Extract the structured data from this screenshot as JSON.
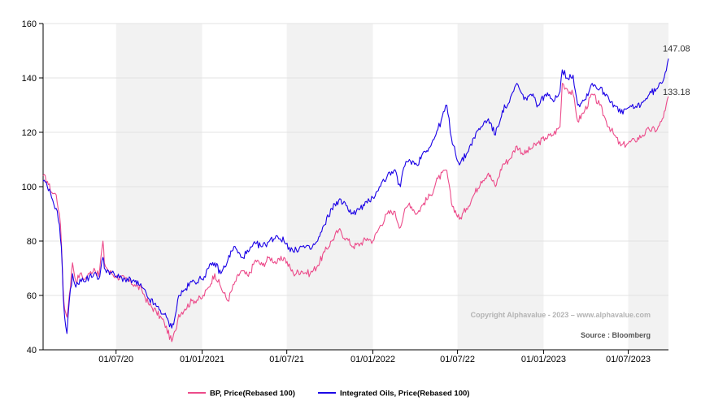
{
  "chart_data": {
    "type": "line",
    "title": "",
    "xlabel": "",
    "ylabel": "",
    "ylim": [
      40,
      160
    ],
    "y_ticks": [
      "40",
      "60",
      "80",
      "100",
      "120",
      "140",
      "160"
    ],
    "x_tick_labels": [
      "01/07/20",
      "01/01/2021",
      "01/07/21",
      "01/01/2022",
      "01/07/22",
      "01/01/2023",
      "01/07/2023"
    ],
    "x_tick_dates": [
      "2020-07-01",
      "2021-01-01",
      "2021-07-01",
      "2022-01-01",
      "2022-07-01",
      "2023-01-01",
      "2023-07-01"
    ],
    "xlim": [
      "2020-01-27",
      "2023-09-25"
    ],
    "grid": true,
    "shaded_bands": [
      [
        "2020-07-01",
        "2021-01-01"
      ],
      [
        "2021-07-01",
        "2022-01-01"
      ],
      [
        "2022-07-01",
        "2023-01-01"
      ],
      [
        "2023-07-01",
        "2023-09-25"
      ]
    ],
    "legend_position": "bottom",
    "copyright": "Copyright Alphavalue - 2023 – www.alphavalue.com",
    "source": "Source : Bloomberg",
    "series": [
      {
        "name": "BP, Price(Rebased 100)",
        "color": "#ec4b8a",
        "end_label": "133.18",
        "points": [
          [
            "2020-01-27",
            104
          ],
          [
            "2020-02-05",
            102
          ],
          [
            "2020-02-14",
            98
          ],
          [
            "2020-02-24",
            97
          ],
          [
            "2020-03-02",
            90
          ],
          [
            "2020-03-06",
            80
          ],
          [
            "2020-03-10",
            62
          ],
          [
            "2020-03-13",
            55
          ],
          [
            "2020-03-18",
            52
          ],
          [
            "2020-03-23",
            60
          ],
          [
            "2020-03-30",
            72
          ],
          [
            "2020-04-06",
            65
          ],
          [
            "2020-04-15",
            68
          ],
          [
            "2020-04-25",
            66
          ],
          [
            "2020-05-05",
            68
          ],
          [
            "2020-05-15",
            70
          ],
          [
            "2020-05-25",
            67
          ],
          [
            "2020-06-03",
            80
          ],
          [
            "2020-06-06",
            72
          ],
          [
            "2020-06-15",
            69
          ],
          [
            "2020-07-01",
            67
          ],
          [
            "2020-07-20",
            66
          ],
          [
            "2020-08-10",
            64
          ],
          [
            "2020-08-25",
            62
          ],
          [
            "2020-09-08",
            57
          ],
          [
            "2020-09-25",
            54
          ],
          [
            "2020-10-12",
            50
          ],
          [
            "2020-10-28",
            43
          ],
          [
            "2020-11-05",
            47
          ],
          [
            "2020-11-12",
            53
          ],
          [
            "2020-11-25",
            55
          ],
          [
            "2020-12-10",
            58
          ],
          [
            "2021-01-01",
            59
          ],
          [
            "2021-01-15",
            63
          ],
          [
            "2021-01-28",
            68
          ],
          [
            "2021-02-10",
            63
          ],
          [
            "2021-02-25",
            58
          ],
          [
            "2021-03-10",
            64
          ],
          [
            "2021-03-25",
            69
          ],
          [
            "2021-04-10",
            67
          ],
          [
            "2021-04-25",
            73
          ],
          [
            "2021-05-10",
            71
          ],
          [
            "2021-05-25",
            74
          ],
          [
            "2021-06-10",
            72
          ],
          [
            "2021-06-25",
            74
          ],
          [
            "2021-07-15",
            68
          ],
          [
            "2021-08-01",
            69
          ],
          [
            "2021-08-20",
            68
          ],
          [
            "2021-09-05",
            71
          ],
          [
            "2021-09-20",
            76
          ],
          [
            "2021-10-05",
            80
          ],
          [
            "2021-10-20",
            84
          ],
          [
            "2021-11-05",
            81
          ],
          [
            "2021-11-20",
            78
          ],
          [
            "2021-12-05",
            79
          ],
          [
            "2021-12-20",
            81
          ],
          [
            "2022-01-01",
            80
          ],
          [
            "2022-01-15",
            85
          ],
          [
            "2022-02-01",
            90
          ],
          [
            "2022-02-15",
            91
          ],
          [
            "2022-03-01",
            85
          ],
          [
            "2022-03-08",
            90
          ],
          [
            "2022-03-20",
            94
          ],
          [
            "2022-04-05",
            90
          ],
          [
            "2022-04-20",
            94
          ],
          [
            "2022-05-05",
            97
          ],
          [
            "2022-05-20",
            103
          ],
          [
            "2022-06-08",
            106
          ],
          [
            "2022-06-18",
            94
          ],
          [
            "2022-07-05",
            88
          ],
          [
            "2022-07-20",
            92
          ],
          [
            "2022-08-05",
            97
          ],
          [
            "2022-08-20",
            102
          ],
          [
            "2022-09-05",
            105
          ],
          [
            "2022-09-20",
            100
          ],
          [
            "2022-10-05",
            108
          ],
          [
            "2022-10-20",
            110
          ],
          [
            "2022-11-05",
            115
          ],
          [
            "2022-11-20",
            112
          ],
          [
            "2022-12-05",
            114
          ],
          [
            "2022-12-20",
            116
          ],
          [
            "2023-01-05",
            118
          ],
          [
            "2023-01-20",
            119
          ],
          [
            "2023-02-05",
            122
          ],
          [
            "2023-02-10",
            138
          ],
          [
            "2023-02-20",
            136
          ],
          [
            "2023-03-05",
            134
          ],
          [
            "2023-03-15",
            124
          ],
          [
            "2023-03-30",
            128
          ],
          [
            "2023-04-15",
            134
          ],
          [
            "2023-05-01",
            130
          ],
          [
            "2023-05-15",
            124
          ],
          [
            "2023-06-01",
            119
          ],
          [
            "2023-06-15",
            115
          ],
          [
            "2023-07-01",
            116
          ],
          [
            "2023-07-15",
            117
          ],
          [
            "2023-08-01",
            119
          ],
          [
            "2023-08-15",
            121
          ],
          [
            "2023-09-01",
            121
          ],
          [
            "2023-09-10",
            124
          ],
          [
            "2023-09-18",
            128
          ],
          [
            "2023-09-25",
            133.18
          ]
        ]
      },
      {
        "name": "Integrated Oils, Price(Rebased 100)",
        "color": "#1a00e6",
        "end_label": "147.08",
        "points": [
          [
            "2020-01-27",
            102
          ],
          [
            "2020-02-05",
            100
          ],
          [
            "2020-02-14",
            96
          ],
          [
            "2020-02-24",
            92
          ],
          [
            "2020-03-02",
            86
          ],
          [
            "2020-03-06",
            78
          ],
          [
            "2020-03-10",
            60
          ],
          [
            "2020-03-13",
            52
          ],
          [
            "2020-03-18",
            46
          ],
          [
            "2020-03-23",
            58
          ],
          [
            "2020-03-30",
            68
          ],
          [
            "2020-04-06",
            63
          ],
          [
            "2020-04-15",
            66
          ],
          [
            "2020-04-25",
            65
          ],
          [
            "2020-05-05",
            67
          ],
          [
            "2020-05-15",
            68
          ],
          [
            "2020-05-25",
            66
          ],
          [
            "2020-06-03",
            74
          ],
          [
            "2020-06-06",
            70
          ],
          [
            "2020-06-15",
            69
          ],
          [
            "2020-07-01",
            67
          ],
          [
            "2020-07-20",
            66
          ],
          [
            "2020-08-10",
            65
          ],
          [
            "2020-08-25",
            63
          ],
          [
            "2020-09-08",
            59
          ],
          [
            "2020-09-25",
            56
          ],
          [
            "2020-10-12",
            53
          ],
          [
            "2020-10-28",
            48
          ],
          [
            "2020-11-05",
            53
          ],
          [
            "2020-11-12",
            60
          ],
          [
            "2020-11-25",
            62
          ],
          [
            "2020-12-10",
            65
          ],
          [
            "2021-01-01",
            66
          ],
          [
            "2021-01-15",
            70
          ],
          [
            "2021-01-28",
            72
          ],
          [
            "2021-02-10",
            68
          ],
          [
            "2021-02-25",
            73
          ],
          [
            "2021-03-10",
            78
          ],
          [
            "2021-03-25",
            74
          ],
          [
            "2021-04-10",
            76
          ],
          [
            "2021-04-25",
            79
          ],
          [
            "2021-05-10",
            78
          ],
          [
            "2021-05-25",
            80
          ],
          [
            "2021-06-10",
            82
          ],
          [
            "2021-06-25",
            80
          ],
          [
            "2021-07-15",
            76
          ],
          [
            "2021-08-01",
            78
          ],
          [
            "2021-08-20",
            77
          ],
          [
            "2021-09-05",
            80
          ],
          [
            "2021-09-20",
            86
          ],
          [
            "2021-10-05",
            92
          ],
          [
            "2021-10-20",
            95
          ],
          [
            "2021-11-05",
            93
          ],
          [
            "2021-11-20",
            90
          ],
          [
            "2021-12-05",
            92
          ],
          [
            "2021-12-20",
            94
          ],
          [
            "2022-01-01",
            96
          ],
          [
            "2022-01-15",
            100
          ],
          [
            "2022-02-01",
            104
          ],
          [
            "2022-02-15",
            106
          ],
          [
            "2022-03-01",
            100
          ],
          [
            "2022-03-08",
            107
          ],
          [
            "2022-03-20",
            110
          ],
          [
            "2022-04-05",
            108
          ],
          [
            "2022-04-20",
            113
          ],
          [
            "2022-05-05",
            115
          ],
          [
            "2022-05-20",
            121
          ],
          [
            "2022-06-08",
            130
          ],
          [
            "2022-06-18",
            118
          ],
          [
            "2022-07-05",
            108
          ],
          [
            "2022-07-20",
            112
          ],
          [
            "2022-08-05",
            118
          ],
          [
            "2022-08-20",
            122
          ],
          [
            "2022-09-05",
            125
          ],
          [
            "2022-09-20",
            119
          ],
          [
            "2022-10-05",
            128
          ],
          [
            "2022-10-20",
            131
          ],
          [
            "2022-11-05",
            138
          ],
          [
            "2022-11-20",
            132
          ],
          [
            "2022-12-05",
            134
          ],
          [
            "2022-12-20",
            130
          ],
          [
            "2023-01-05",
            134
          ],
          [
            "2023-01-20",
            132
          ],
          [
            "2023-02-05",
            135
          ],
          [
            "2023-02-10",
            143
          ],
          [
            "2023-02-20",
            140
          ],
          [
            "2023-03-05",
            141
          ],
          [
            "2023-03-15",
            130
          ],
          [
            "2023-03-30",
            132
          ],
          [
            "2023-04-15",
            138
          ],
          [
            "2023-05-01",
            136
          ],
          [
            "2023-05-15",
            134
          ],
          [
            "2023-06-01",
            130
          ],
          [
            "2023-06-15",
            127
          ],
          [
            "2023-07-01",
            129
          ],
          [
            "2023-07-15",
            129
          ],
          [
            "2023-08-01",
            131
          ],
          [
            "2023-08-15",
            134
          ],
          [
            "2023-09-01",
            136
          ],
          [
            "2023-09-10",
            138
          ],
          [
            "2023-09-18",
            142
          ],
          [
            "2023-09-25",
            147.08
          ]
        ]
      }
    ]
  }
}
